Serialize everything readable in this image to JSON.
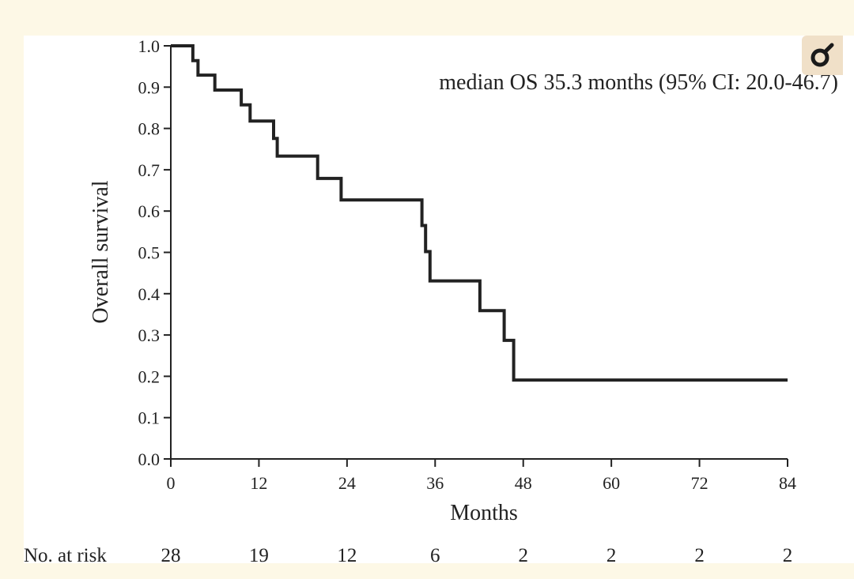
{
  "chart_data": {
    "type": "line",
    "title": "",
    "xlabel": "Months",
    "ylabel": "Overall survival",
    "xlim": [
      0,
      84
    ],
    "ylim": [
      0,
      1
    ],
    "x_ticks": [
      0,
      12,
      24,
      36,
      48,
      60,
      72,
      84
    ],
    "x_tick_labels": [
      "0",
      "12",
      "24",
      "36",
      "48",
      "60",
      "72",
      "84"
    ],
    "y_ticks": [
      0,
      0.1,
      0.2,
      0.3,
      0.4,
      0.5,
      0.6,
      0.7,
      0.8,
      0.9,
      1.0
    ],
    "y_tick_labels": [
      "0.0",
      "0.1",
      "0.2",
      "0.3",
      "0.4",
      "0.5",
      "0.6",
      "0.7",
      "0.8",
      "0.9",
      "1.0"
    ],
    "grid": false,
    "annotation": "median OS 35.3 months (95% CI: 20.0-46.7)",
    "series": [
      {
        "step_points": [
          [
            0,
            1.0
          ],
          [
            3,
            1.0
          ],
          [
            3,
            0.964
          ],
          [
            3.7,
            0.964
          ],
          [
            3.7,
            0.929
          ],
          [
            6,
            0.929
          ],
          [
            6,
            0.893
          ],
          [
            9.6,
            0.893
          ],
          [
            9.6,
            0.857
          ],
          [
            10.8,
            0.857
          ],
          [
            10.8,
            0.818
          ],
          [
            14,
            0.818
          ],
          [
            14,
            0.776
          ],
          [
            14.5,
            0.776
          ],
          [
            14.5,
            0.733
          ],
          [
            20,
            0.733
          ],
          [
            20,
            0.679
          ],
          [
            23.2,
            0.679
          ],
          [
            23.2,
            0.627
          ],
          [
            34.2,
            0.627
          ],
          [
            34.2,
            0.565
          ],
          [
            34.7,
            0.565
          ],
          [
            34.7,
            0.502
          ],
          [
            35.3,
            0.502
          ],
          [
            35.3,
            0.431
          ],
          [
            42.1,
            0.431
          ],
          [
            42.1,
            0.359
          ],
          [
            45.4,
            0.359
          ],
          [
            45.4,
            0.287
          ],
          [
            46.7,
            0.287
          ],
          [
            46.7,
            0.191
          ],
          [
            84,
            0.191
          ]
        ]
      }
    ],
    "risk_table": {
      "label": "No. at risk",
      "times": [
        0,
        12,
        24,
        36,
        48,
        60,
        72,
        84
      ],
      "counts": [
        "28",
        "19",
        "12",
        "6",
        "2",
        "2",
        "2",
        "2"
      ]
    }
  },
  "colors": {
    "line": "#222222",
    "background": "#fdf8e6",
    "tool_button": "#f0e0c8"
  },
  "tool_button": {
    "icon": "magnifier-icon"
  }
}
